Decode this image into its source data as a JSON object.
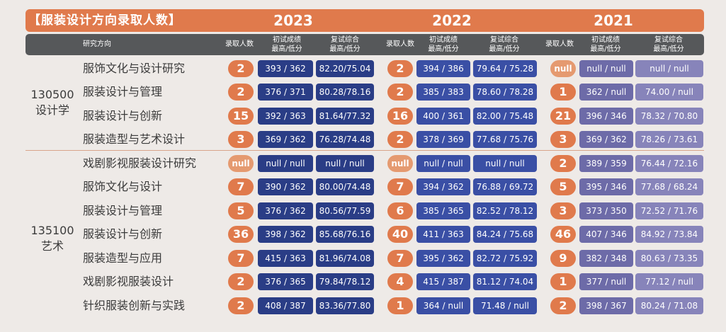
{
  "title": "【服装设计方向录取人数】",
  "years": [
    "2023",
    "2022",
    "2021"
  ],
  "headers": {
    "direction": "研究方向",
    "count": "录取人数",
    "initial_l1": "初试成绩",
    "initial_l2": "最高/低分",
    "retest_l1": "复试综合",
    "retest_l2": "最高/低分"
  },
  "groups": [
    {
      "code": "130500",
      "name": "设计学"
    },
    {
      "code": "135100",
      "name": "艺术"
    }
  ],
  "rows": [
    {
      "dir": "服饰文化与设计研究",
      "y2023": {
        "n": "2",
        "i": "393 / 362",
        "r": "82.20/75.04"
      },
      "y2022": {
        "n": "2",
        "i": "394 / 386",
        "r": "79.64 / 75.28"
      },
      "y2021": {
        "n": "null",
        "i": "null / null",
        "r": "null  /  null"
      }
    },
    {
      "dir": "服装设计与管理",
      "y2023": {
        "n": "2",
        "i": "376 / 371",
        "r": "80.28/78.16"
      },
      "y2022": {
        "n": "2",
        "i": "385 / 383",
        "r": "78.60 / 78.28"
      },
      "y2021": {
        "n": "1",
        "i": "362 / null",
        "r": "74.00  /  null"
      }
    },
    {
      "dir": "服装设计与创新",
      "y2023": {
        "n": "15",
        "i": "392 / 363",
        "r": "81.64/77.32"
      },
      "y2022": {
        "n": "16",
        "i": "400 / 361",
        "r": "82.00 / 75.48"
      },
      "y2021": {
        "n": "21",
        "i": "396 / 346",
        "r": "78.32 / 70.80"
      }
    },
    {
      "dir": "服装造型与艺术设计",
      "y2023": {
        "n": "3",
        "i": "369 / 362",
        "r": "76.28/74.48"
      },
      "y2022": {
        "n": "2",
        "i": "378 / 369",
        "r": "77.68 / 75.76"
      },
      "y2021": {
        "n": "3",
        "i": "369 / 362",
        "r": "78.26 / 73.61"
      }
    },
    {
      "dir": "戏剧影视服装设计研究",
      "y2023": {
        "n": "null",
        "i": "null / null",
        "r": "null  /  null"
      },
      "y2022": {
        "n": "null",
        "i": "null / null",
        "r": "null  /  null"
      },
      "y2021": {
        "n": "2",
        "i": "389 / 359",
        "r": "76.44 / 72.16"
      }
    },
    {
      "dir": "服饰文化与设计",
      "y2023": {
        "n": "7",
        "i": "390 / 362",
        "r": "80.00/74.48"
      },
      "y2022": {
        "n": "7",
        "i": "394 / 362",
        "r": "76.88 / 69.72"
      },
      "y2021": {
        "n": "5",
        "i": "395 / 346",
        "r": "77.68 / 68.24"
      }
    },
    {
      "dir": "服装设计与管理",
      "y2023": {
        "n": "5",
        "i": "376 / 362",
        "r": "80.56/77.59"
      },
      "y2022": {
        "n": "6",
        "i": "385 / 365",
        "r": "82.52 / 78.12"
      },
      "y2021": {
        "n": "3",
        "i": "373 / 350",
        "r": "72.52 / 71.76"
      }
    },
    {
      "dir": "服装设计与创新",
      "y2023": {
        "n": "36",
        "i": "398 / 362",
        "r": "85.68/76.16"
      },
      "y2022": {
        "n": "40",
        "i": "411 / 363",
        "r": "84.24 / 75.68"
      },
      "y2021": {
        "n": "46",
        "i": "407 / 346",
        "r": "84.92 / 73.84"
      }
    },
    {
      "dir": "服装造型与应用",
      "y2023": {
        "n": "7",
        "i": "415 / 363",
        "r": "81.96/74.08"
      },
      "y2022": {
        "n": "7",
        "i": "395 / 362",
        "r": "82.72 / 75.92"
      },
      "y2021": {
        "n": "9",
        "i": "382 / 348",
        "r": "80.63 / 73.35"
      }
    },
    {
      "dir": "戏剧影视服装设计",
      "y2023": {
        "n": "2",
        "i": "376 / 365",
        "r": "79.84/78.12"
      },
      "y2022": {
        "n": "4",
        "i": "415 / 387",
        "r": "81.12 / 74.04"
      },
      "y2021": {
        "n": "1",
        "i": "377 / null",
        "r": "77.12  /  null"
      }
    },
    {
      "dir": "针织服装创新与实践",
      "y2023": {
        "n": "2",
        "i": "408 / 387",
        "r": "83.36/77.80"
      },
      "y2022": {
        "n": "1",
        "i": "364 / null",
        "r": "71.48 / null"
      },
      "y2021": {
        "n": "2",
        "i": "398 / 367",
        "r": "80.24 / 71.08"
      }
    }
  ],
  "colors": {
    "accent": "#e07a4c",
    "header": "#56585a",
    "box_2023": "#2a3d86",
    "box_2022": "#3a4fa5",
    "box_2021": "#6d6ba8"
  }
}
